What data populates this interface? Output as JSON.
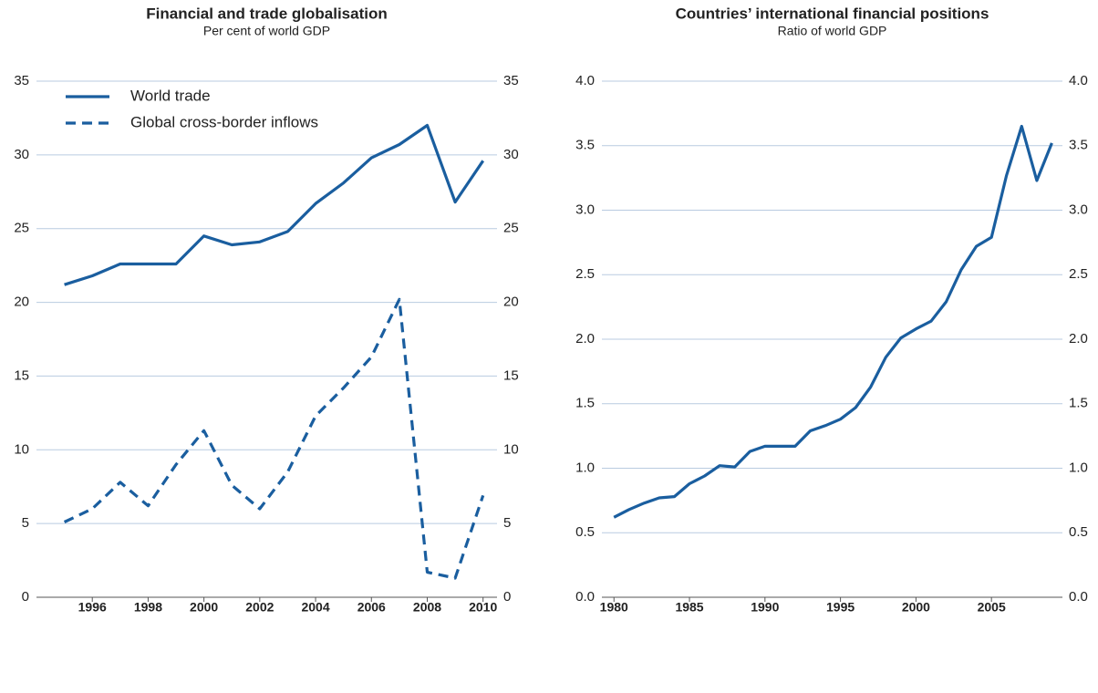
{
  "chart_data": [
    {
      "type": "line",
      "title": "Financial and trade globalisation",
      "subtitle": "Per cent of world GDP",
      "x": [
        1995,
        1996,
        1997,
        1998,
        1999,
        2000,
        2001,
        2002,
        2003,
        2004,
        2005,
        2006,
        2007,
        2008,
        2009,
        2010
      ],
      "xlim": [
        1994.0,
        2010.5
      ],
      "xticks": [
        1996,
        1998,
        2000,
        2002,
        2004,
        2006,
        2008,
        2010
      ],
      "ylim": [
        0,
        35
      ],
      "yticks": [
        0,
        5,
        10,
        15,
        20,
        25,
        30,
        35
      ],
      "grid": true,
      "legend": "upper left",
      "series": [
        {
          "name": "World trade",
          "color": "#1a5e9f",
          "dash": false,
          "values": [
            21.2,
            21.8,
            22.6,
            22.6,
            22.6,
            24.5,
            23.9,
            24.1,
            24.8,
            26.7,
            28.1,
            29.8,
            30.7,
            32.0,
            26.8,
            29.6
          ]
        },
        {
          "name": "Global cross-border inflows",
          "color": "#1a5e9f",
          "dash": true,
          "values": [
            5.1,
            6.0,
            7.8,
            6.2,
            9.0,
            11.3,
            7.6,
            6.0,
            8.5,
            12.3,
            14.2,
            16.3,
            20.2,
            1.7,
            1.3,
            6.9
          ]
        }
      ]
    },
    {
      "type": "line",
      "title": "Countries’ international financial positions",
      "subtitle": "Ratio of world GDP",
      "x": [
        1980,
        1981,
        1982,
        1983,
        1984,
        1985,
        1986,
        1987,
        1988,
        1989,
        1990,
        1991,
        1992,
        1993,
        1994,
        1995,
        1996,
        1997,
        1998,
        1999,
        2000,
        2001,
        2002,
        2003,
        2004,
        2005,
        2006,
        2007,
        2008,
        2009
      ],
      "xlim": [
        1979.2,
        2009.7
      ],
      "xticks": [
        1980,
        1985,
        1990,
        1995,
        2000,
        2005
      ],
      "ylim": [
        0,
        4
      ],
      "yticks": [
        {
          "value": 0,
          "label": "0.0"
        },
        {
          "value": 0.5,
          "label": "0.5"
        },
        {
          "value": 1,
          "label": "1.0"
        },
        {
          "value": 1.5,
          "label": "1.5"
        },
        {
          "value": 2,
          "label": "2.0"
        },
        {
          "value": 2.5,
          "label": "2.5"
        },
        {
          "value": 3,
          "label": "3.0"
        },
        {
          "value": 3.5,
          "label": "3.5"
        },
        {
          "value": 4,
          "label": "4.0"
        }
      ],
      "grid": true,
      "series": [
        {
          "color": "#1a5e9f",
          "dash": false,
          "values": [
            0.62,
            0.68,
            0.73,
            0.77,
            0.78,
            0.88,
            0.94,
            1.02,
            1.01,
            1.13,
            1.17,
            1.17,
            1.17,
            1.29,
            1.33,
            1.38,
            1.47,
            1.63,
            1.86,
            2.01,
            2.08,
            2.14,
            2.29,
            2.54,
            2.72,
            2.79,
            3.27,
            3.65,
            3.23,
            3.52
          ]
        }
      ]
    }
  ]
}
